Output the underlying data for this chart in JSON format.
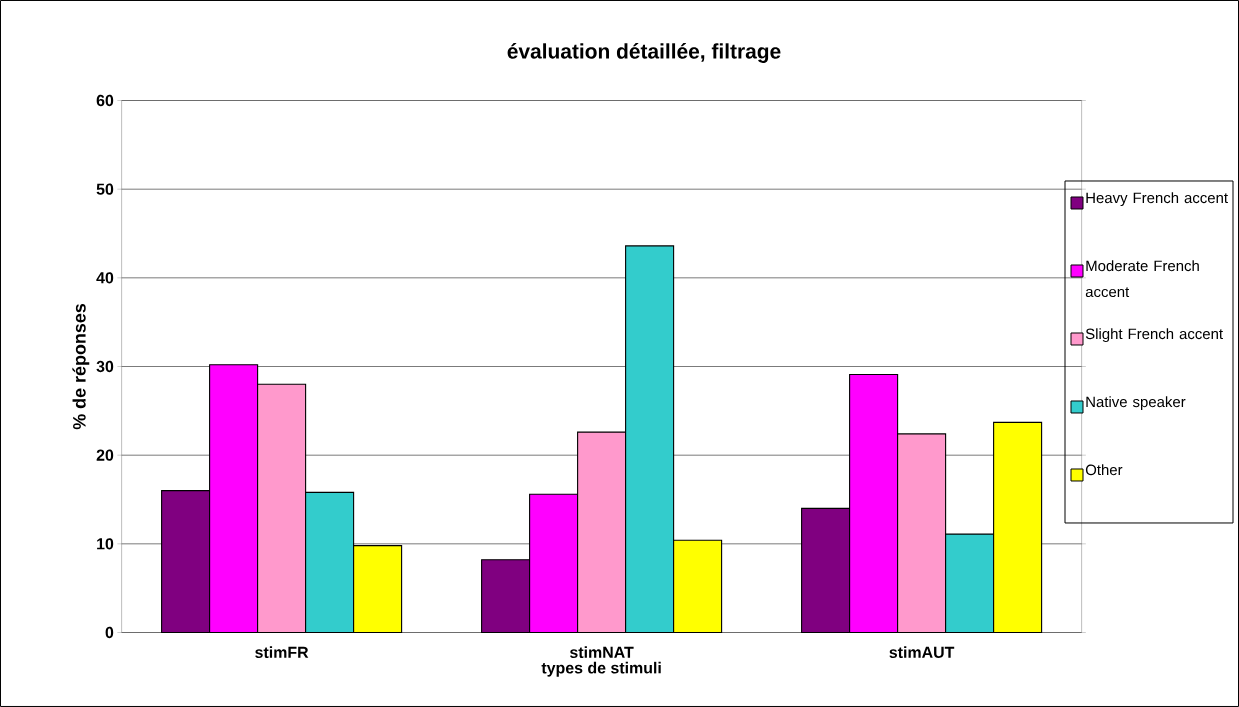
{
  "chart_data": {
    "type": "bar",
    "title": "évaluation détaillée, filtrage",
    "xlabel": "types de stimuli",
    "ylabel": "% de réponses",
    "categories": [
      "stimFR",
      "stimNAT",
      "stimAUT"
    ],
    "series": [
      {
        "name": "Heavy French accent",
        "color": "#800080",
        "values": [
          16.0,
          8.2,
          14.0
        ]
      },
      {
        "name": "Moderate French accent",
        "color": "#ff00ff",
        "values": [
          30.2,
          15.6,
          29.1
        ]
      },
      {
        "name": "Slight  French accent",
        "color": "#ff99cc",
        "values": [
          28.0,
          22.6,
          22.4
        ]
      },
      {
        "name": "Native speaker",
        "color": "#33cccc",
        "values": [
          15.8,
          43.6,
          11.1
        ]
      },
      {
        "name": "Other",
        "color": "#ffff00",
        "values": [
          9.8,
          10.4,
          23.7
        ]
      }
    ],
    "ylim": [
      0,
      60
    ],
    "yticks": [
      0,
      10,
      20,
      30,
      40,
      50,
      60
    ],
    "grid": "y",
    "legend": "right"
  }
}
